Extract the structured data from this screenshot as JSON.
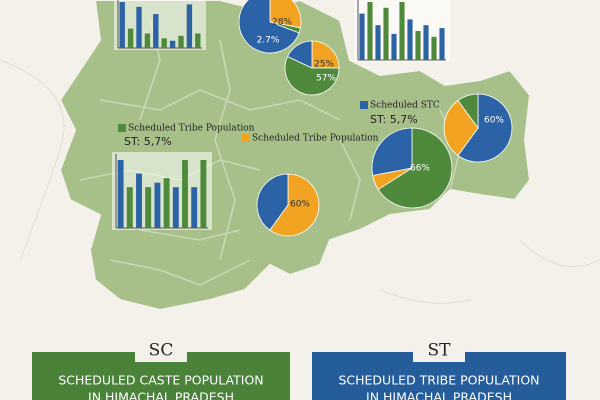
{
  "pies": [
    {
      "slices": [
        {
          "value": 28,
          "label": "28%",
          "color": "#f2a321"
        },
        {
          "value": 2.7,
          "label": "2.7%",
          "color": "#4f8a3c"
        },
        {
          "value": 69.3,
          "color": "#2b63a6"
        }
      ]
    },
    {
      "slices": [
        {
          "value": 25,
          "label": "25%",
          "color": "#f2a321"
        },
        {
          "value": 57,
          "label": "57%",
          "color": "#4f8a3c"
        },
        {
          "value": 18,
          "color": "#2b63a6"
        }
      ]
    },
    {
      "slices": [
        {
          "value": 60,
          "label": "60%",
          "color": "#2b63a6"
        },
        {
          "value": 30,
          "color": "#f2a321"
        },
        {
          "value": 10,
          "color": "#4f8a3c"
        }
      ]
    },
    {
      "slices": [
        {
          "value": 66,
          "label": "66%",
          "color": "#4f8a3c"
        },
        {
          "value": 6,
          "color": "#f2a321"
        },
        {
          "value": 28,
          "color": "#2b63a6"
        }
      ]
    },
    {
      "slices": [
        {
          "value": 60,
          "label": "60%",
          "color": "#f2a321"
        },
        {
          "value": 40,
          "color": "#2b63a6"
        }
      ]
    }
  ],
  "bar_groups": [
    {
      "values": [
        95,
        40,
        85,
        30,
        70,
        20,
        15,
        25,
        90,
        30
      ],
      "colors": [
        "#2b63a6",
        "#4f8a3c"
      ]
    },
    {
      "values": [
        80,
        100,
        60,
        90,
        45,
        100,
        70,
        50,
        60,
        40,
        55
      ],
      "colors": [
        "#2b63a6",
        "#4f8a3c"
      ]
    },
    {
      "values": [
        75,
        45,
        60,
        45,
        50,
        55,
        45,
        75,
        45,
        75
      ],
      "colors": [
        "#2b63a6",
        "#4f8a3c"
      ]
    }
  ],
  "legends": [
    {
      "label": "Scheduled Tribe Population",
      "color": "#4f8a3c"
    },
    {
      "label": "Scheduled Tribe Population",
      "color": "#f2a321"
    },
    {
      "label": "Scheduled STC",
      "color": "#2b63a6"
    }
  ],
  "notes": [
    "ST: 5,7%",
    "ST: 5,7%"
  ],
  "panels": [
    {
      "tab": "SC",
      "title_lines": [
        "SCHEDULED CASTE POPULATION",
        "IN HIMACHAL PRADESH"
      ],
      "color": "#4a8239"
    },
    {
      "tab": "ST",
      "title_lines": [
        "SCHEDULED TRIBE POPULATION",
        "IN HIMACHAL PRADESH"
      ],
      "color": "#245d99"
    }
  ]
}
